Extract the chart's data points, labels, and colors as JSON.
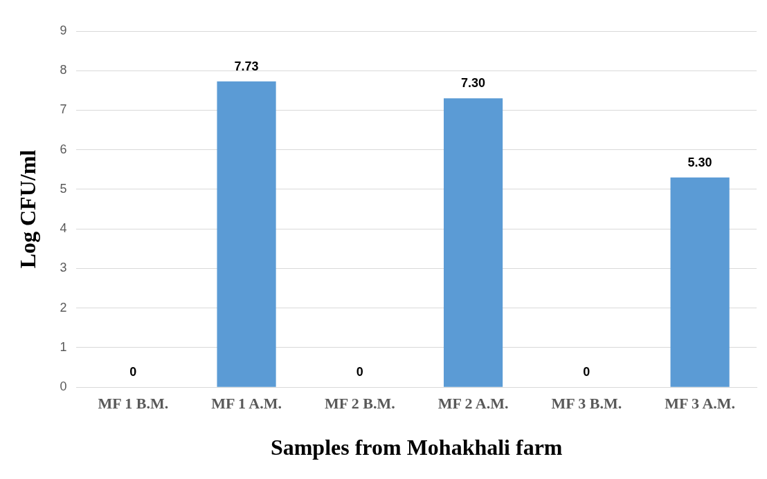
{
  "chart_data": {
    "type": "bar",
    "xlabel": "Samples from Mohakhali farm",
    "ylabel": "Log CFU/ml",
    "categories": [
      "MF 1 B.M.",
      "MF 1 A.M.",
      "MF 2 B.M.",
      "MF 2 A.M.",
      "MF 3 B.M.",
      "MF 3 A.M."
    ],
    "values": [
      0,
      7.73,
      0,
      7.3,
      0,
      5.3
    ],
    "value_labels": [
      "0",
      "7.73",
      "0",
      "7.30",
      "0",
      "5.30"
    ],
    "color": "#5b9bd5",
    "ylim": [
      0,
      9
    ],
    "yticks": [
      0,
      1,
      2,
      3,
      4,
      5,
      6,
      7,
      8,
      9
    ],
    "grid": "y",
    "legend": false
  }
}
